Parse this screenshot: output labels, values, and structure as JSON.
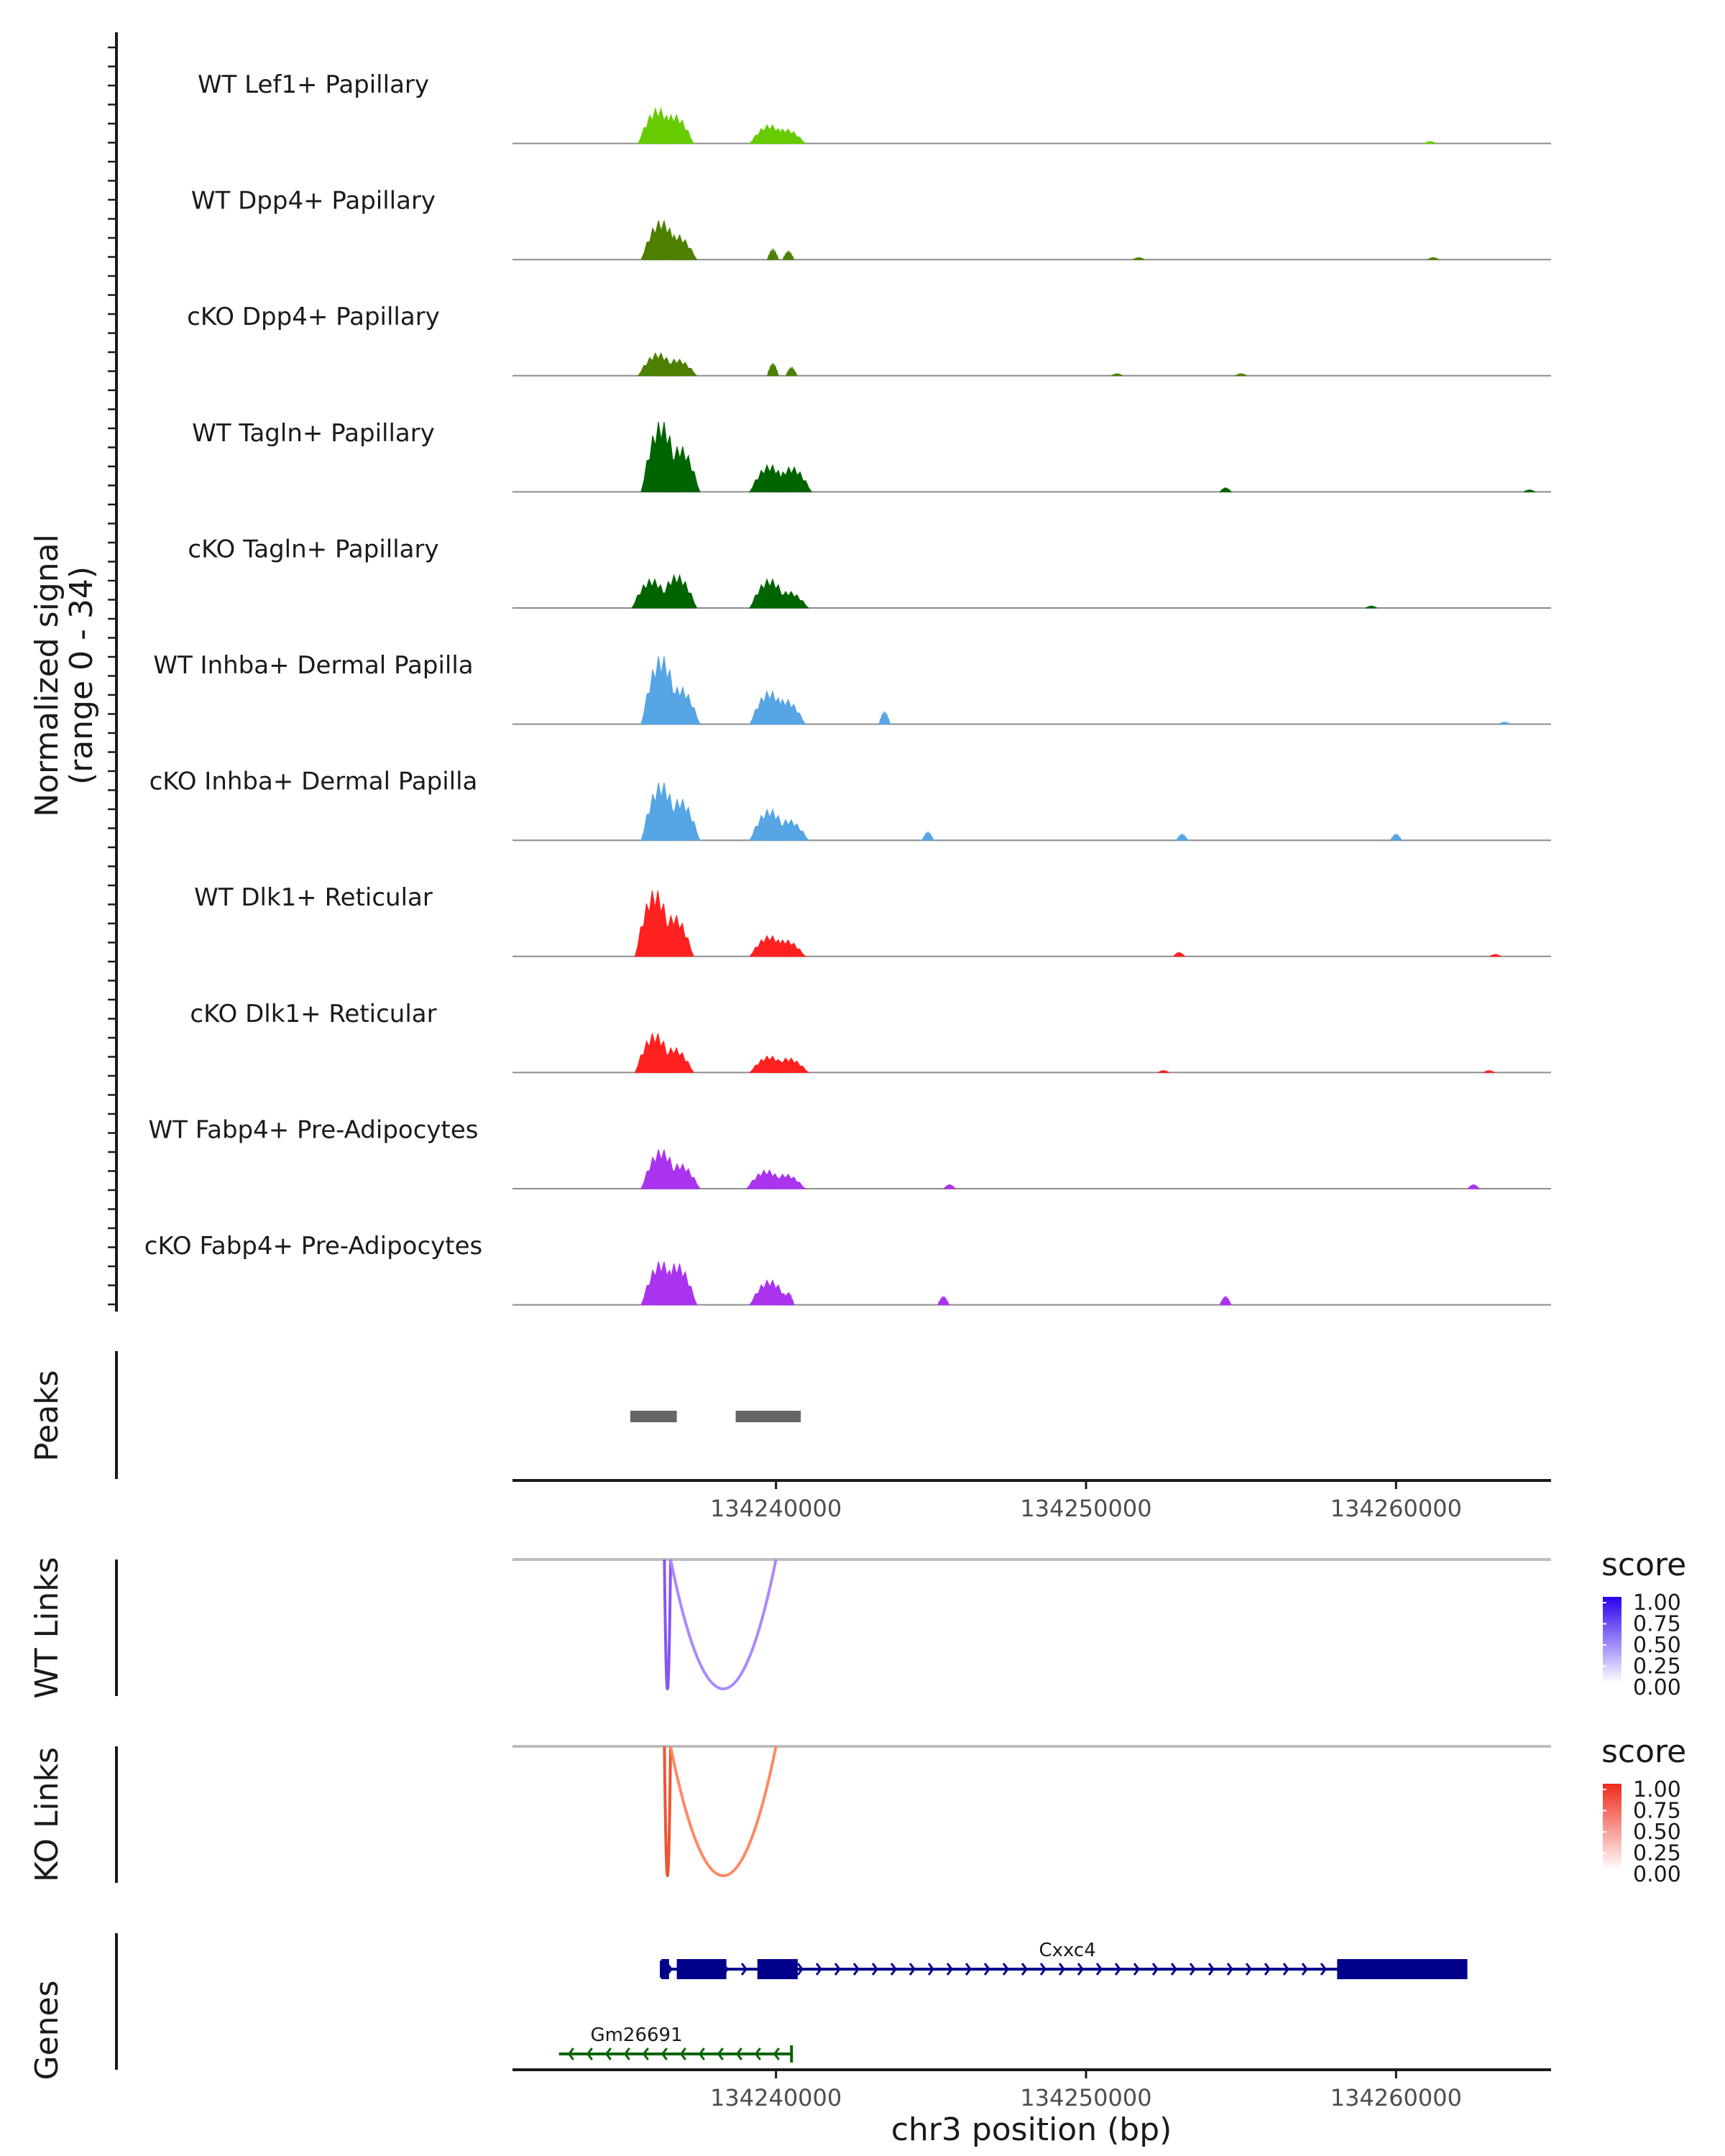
{
  "chart_data": {
    "type": "area",
    "title": "",
    "xlabel": "chr3 position (bp)",
    "xlim": [
      134231500,
      134265000
    ],
    "xticks": [
      134240000,
      134250000,
      134260000
    ],
    "xtick_labels": [
      "134240000",
      "134250000",
      "134260000"
    ],
    "coverage_ylabel": "Normalized signal",
    "coverage_range_label": "(range 0 - 34)",
    "ylim": [
      0,
      34
    ],
    "series": [
      {
        "name": "WT Lef1+ Papillary",
        "color": "#66cc00",
        "peaks": [
          [
            134236200,
            17
          ],
          [
            134236700,
            14
          ],
          [
            134239800,
            9
          ],
          [
            134240300,
            7
          ],
          [
            134261100,
            1
          ]
        ]
      },
      {
        "name": "WT Dpp4+ Papillary",
        "color": "#4d8000",
        "peaks": [
          [
            134236300,
            19
          ],
          [
            134236800,
            12
          ],
          [
            134239900,
            5
          ],
          [
            134240400,
            4
          ],
          [
            134251700,
            1
          ],
          [
            134261200,
            1
          ]
        ]
      },
      {
        "name": "cKO Dpp4+ Papillary",
        "color": "#4d8000",
        "peaks": [
          [
            134236200,
            11
          ],
          [
            134236800,
            8
          ],
          [
            134239900,
            6
          ],
          [
            134240500,
            4
          ],
          [
            134251000,
            1
          ],
          [
            134255000,
            1
          ]
        ]
      },
      {
        "name": "WT Tagln+ Papillary",
        "color": "#006400",
        "peaks": [
          [
            134236300,
            34
          ],
          [
            134236900,
            22
          ],
          [
            134239800,
            13
          ],
          [
            134240500,
            12
          ],
          [
            134254500,
            2
          ],
          [
            134264300,
            1
          ]
        ]
      },
      {
        "name": "cKO Tagln+ Papillary",
        "color": "#006400",
        "peaks": [
          [
            134236000,
            14
          ],
          [
            134236800,
            16
          ],
          [
            134239800,
            14
          ],
          [
            134240400,
            8
          ],
          [
            134259200,
            1
          ]
        ]
      },
      {
        "name": "WT Inhba+ Dermal Papilla",
        "color": "#56a5e4",
        "peaks": [
          [
            134236300,
            33
          ],
          [
            134236900,
            18
          ],
          [
            134239800,
            16
          ],
          [
            134240300,
            12
          ],
          [
            134243500,
            6
          ],
          [
            134263500,
            1
          ]
        ]
      },
      {
        "name": "cKO Inhba+ Dermal Papilla",
        "color": "#56a5e4",
        "peaks": [
          [
            134236300,
            28
          ],
          [
            134236900,
            20
          ],
          [
            134239800,
            15
          ],
          [
            134240400,
            10
          ],
          [
            134244900,
            4
          ],
          [
            134253100,
            3
          ],
          [
            134260000,
            3
          ]
        ]
      },
      {
        "name": "WT Dlk1+ Reticular",
        "color": "#ff2020",
        "peaks": [
          [
            134236100,
            32
          ],
          [
            134236700,
            20
          ],
          [
            134239800,
            10
          ],
          [
            134240300,
            8
          ],
          [
            134253000,
            2
          ],
          [
            134263200,
            1
          ]
        ]
      },
      {
        "name": "cKO Dlk1+ Reticular",
        "color": "#ff2020",
        "peaks": [
          [
            134236100,
            19
          ],
          [
            134236700,
            12
          ],
          [
            134239800,
            8
          ],
          [
            134240400,
            7
          ],
          [
            134252500,
            1
          ],
          [
            134263000,
            1
          ]
        ]
      },
      {
        "name": "WT Fabp4+ Pre-Adipocytes",
        "color": "#aa33ee",
        "peaks": [
          [
            134236300,
            19
          ],
          [
            134236900,
            12
          ],
          [
            134239700,
            9
          ],
          [
            134240300,
            7
          ],
          [
            134245600,
            2
          ],
          [
            134262500,
            2
          ]
        ]
      },
      {
        "name": "cKO Fabp4+ Pre-Adipocytes",
        "color": "#aa33ee",
        "peaks": [
          [
            134236300,
            21
          ],
          [
            134236800,
            20
          ],
          [
            134239800,
            12
          ],
          [
            134240400,
            6
          ],
          [
            134245400,
            4
          ],
          [
            134254500,
            4
          ]
        ]
      }
    ],
    "peaks_label": "Peaks",
    "peak_regions": [
      [
        134235300,
        134236800
      ],
      [
        134238700,
        134240800
      ]
    ],
    "links": [
      {
        "label": "WT Links",
        "legend_title": "score",
        "legend_ticks": [
          "1.00",
          "0.75",
          "0.50",
          "0.25",
          "0.00"
        ],
        "color_high": "#2a00ee",
        "color_low": "#ffffff",
        "arcs": [
          {
            "start": 134236400,
            "end": 134236600,
            "score": 0.7
          },
          {
            "start": 134236600,
            "end": 134240000,
            "score": 0.5
          }
        ]
      },
      {
        "label": "KO Links",
        "legend_title": "score",
        "legend_ticks": [
          "1.00",
          "0.75",
          "0.50",
          "0.25",
          "0.00"
        ],
        "color_high": "#ee2a1a",
        "color_low": "#ffffff",
        "arcs": [
          {
            "start": 134236400,
            "end": 134236600,
            "score": 0.6
          },
          {
            "start": 134236600,
            "end": 134240000,
            "score": 0.5
          }
        ]
      }
    ],
    "genes_label": "Genes",
    "genes": [
      {
        "name": "Cxxc4",
        "strand": "+",
        "color": "#00008b",
        "start": 134236300,
        "end": 134262300,
        "exons": [
          [
            134236300,
            134236550
          ],
          [
            134236800,
            134238400
          ],
          [
            134239400,
            134240700
          ],
          [
            134258100,
            134262300
          ]
        ]
      },
      {
        "name": "Gm26691",
        "strand": "-",
        "color": "#006400",
        "start": 134233000,
        "end": 134240500,
        "exons": []
      }
    ]
  }
}
